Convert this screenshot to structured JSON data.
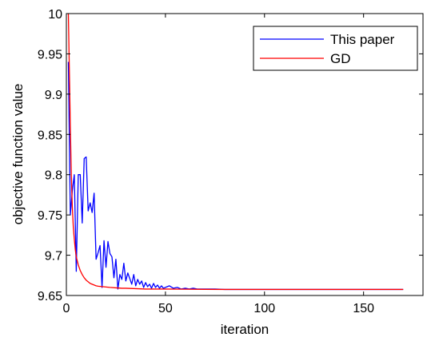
{
  "chart_data": {
    "type": "line",
    "title": "",
    "xlabel": "iteration",
    "ylabel": "objective function value",
    "xlim": [
      0,
      180
    ],
    "ylim": [
      9.65,
      10
    ],
    "xticks": [
      0,
      50,
      100,
      150
    ],
    "yticks": [
      9.65,
      9.7,
      9.75,
      9.8,
      9.85,
      9.9,
      9.95,
      10
    ],
    "xtick_labels": [
      "0",
      "50",
      "100",
      "150"
    ],
    "ytick_labels": [
      "9.65",
      "9.7",
      "9.75",
      "9.8",
      "9.85",
      "9.9",
      "9.95",
      "10"
    ],
    "grid": false,
    "legend_position": "top-right",
    "series": [
      {
        "name": "This paper",
        "color": "#0000ff",
        "x": [
          1,
          2,
          3,
          4,
          5,
          6,
          7,
          8,
          9,
          10,
          11,
          12,
          13,
          14,
          15,
          16,
          17,
          18,
          19,
          20,
          21,
          22,
          23,
          24,
          25,
          26,
          27,
          28,
          29,
          30,
          31,
          32,
          33,
          34,
          35,
          36,
          37,
          38,
          39,
          40,
          41,
          42,
          43,
          44,
          45,
          46,
          47,
          48,
          49,
          50,
          52,
          54,
          56,
          58,
          60,
          62,
          64,
          66,
          68,
          70,
          75,
          80,
          85,
          90,
          95,
          100,
          110,
          120,
          130,
          140,
          150,
          160,
          170
        ],
        "y": [
          9.94,
          9.75,
          9.78,
          9.8,
          9.68,
          9.8,
          9.8,
          9.74,
          9.82,
          9.822,
          9.755,
          9.765,
          9.753,
          9.777,
          9.695,
          9.703,
          9.712,
          9.66,
          9.718,
          9.685,
          9.717,
          9.702,
          9.698,
          9.672,
          9.695,
          9.658,
          9.676,
          9.67,
          9.69,
          9.668,
          9.678,
          9.671,
          9.664,
          9.676,
          9.662,
          9.67,
          9.664,
          9.668,
          9.66,
          9.666,
          9.661,
          9.664,
          9.659,
          9.665,
          9.66,
          9.663,
          9.659,
          9.662,
          9.659,
          9.66,
          9.662,
          9.659,
          9.66,
          9.658,
          9.659,
          9.658,
          9.659,
          9.658,
          9.658,
          9.658,
          9.658,
          9.6575,
          9.6575,
          9.6575,
          9.6575,
          9.6575,
          9.6575,
          9.6575,
          9.6575,
          9.6575,
          9.6575,
          9.6575,
          9.6575
        ]
      },
      {
        "name": "GD",
        "color": "#ff0000",
        "x": [
          1,
          1.5,
          2,
          2.5,
          3,
          3.5,
          4,
          4.5,
          5,
          6,
          7,
          8,
          9,
          10,
          11,
          12,
          13,
          14,
          15,
          16,
          18,
          20,
          22,
          25,
          28,
          30,
          35,
          40,
          45,
          50,
          60,
          70,
          80,
          100,
          120,
          140,
          160,
          170
        ],
        "y": [
          10.0,
          9.93,
          9.86,
          9.8,
          9.76,
          9.735,
          9.72,
          9.707,
          9.698,
          9.688,
          9.681,
          9.676,
          9.672,
          9.669,
          9.667,
          9.665,
          9.664,
          9.663,
          9.662,
          9.6615,
          9.661,
          9.6605,
          9.66,
          9.6595,
          9.659,
          9.659,
          9.6585,
          9.658,
          9.658,
          9.658,
          9.6578,
          9.6576,
          9.6575,
          9.6575,
          9.6575,
          9.6575,
          9.6575,
          9.6575
        ]
      }
    ]
  }
}
